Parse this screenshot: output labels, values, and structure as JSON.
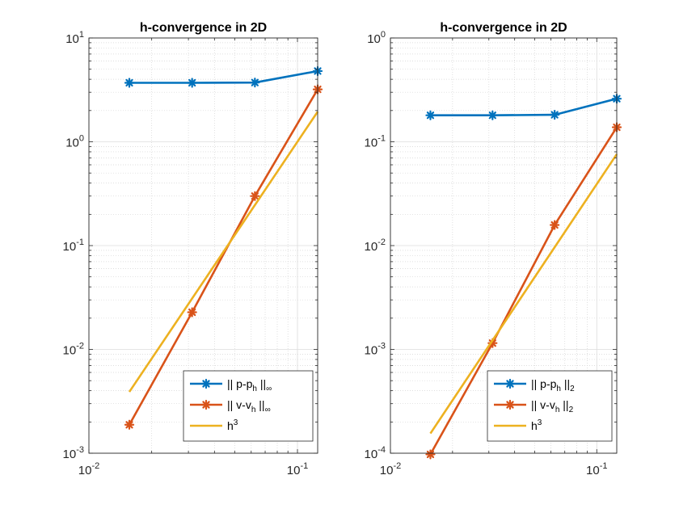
{
  "chart_data": [
    {
      "type": "line",
      "title": "h-convergence in 2D",
      "xscale": "log",
      "yscale": "log",
      "xlim": [
        0.01,
        0.125
      ],
      "ylim": [
        0.001,
        10
      ],
      "grid": true,
      "legend_position": "bottom-right",
      "x_ticks": [
        {
          "value": 0.01,
          "base": "10",
          "exp": "-2"
        },
        {
          "value": 0.1,
          "base": "10",
          "exp": "-1"
        }
      ],
      "y_ticks": [
        {
          "value": 0.001,
          "base": "10",
          "exp": "-3"
        },
        {
          "value": 0.01,
          "base": "10",
          "exp": "-2"
        },
        {
          "value": 0.1,
          "base": "10",
          "exp": "-1"
        },
        {
          "value": 1,
          "base": "10",
          "exp": "0"
        },
        {
          "value": 10,
          "base": "10",
          "exp": "1"
        }
      ],
      "series": [
        {
          "legend_main": "|| p-p",
          "legend_sub": "h",
          "legend_tail": " ||",
          "legend_tail_sub": "∞",
          "color": "#0072BD",
          "marker": "asterisk",
          "x": [
            0.015625,
            0.03125,
            0.0625,
            0.125
          ],
          "y": [
            3.7,
            3.7,
            3.72,
            4.8
          ]
        },
        {
          "legend_main": "|| v-v",
          "legend_sub": "h",
          "legend_tail": " ||",
          "legend_tail_sub": "∞",
          "color": "#D95319",
          "marker": "asterisk",
          "x": [
            0.015625,
            0.03125,
            0.0625,
            0.125
          ],
          "y": [
            0.00188,
            0.0228,
            0.3,
            3.2
          ]
        },
        {
          "legend_main": "h",
          "legend_sup": "3",
          "color": "#EDB120",
          "marker": "none",
          "x": [
            0.015625,
            0.125
          ],
          "y": [
            0.0039,
            1.95
          ]
        }
      ]
    },
    {
      "type": "line",
      "title": "h-convergence in 2D",
      "xscale": "log",
      "yscale": "log",
      "xlim": [
        0.01,
        0.125
      ],
      "ylim": [
        0.0001,
        1
      ],
      "grid": true,
      "legend_position": "bottom-right",
      "x_ticks": [
        {
          "value": 0.01,
          "base": "10",
          "exp": "-2"
        },
        {
          "value": 0.1,
          "base": "10",
          "exp": "-1"
        }
      ],
      "y_ticks": [
        {
          "value": 0.0001,
          "base": "10",
          "exp": "-4"
        },
        {
          "value": 0.001,
          "base": "10",
          "exp": "-3"
        },
        {
          "value": 0.01,
          "base": "10",
          "exp": "-2"
        },
        {
          "value": 0.1,
          "base": "10",
          "exp": "-1"
        },
        {
          "value": 1,
          "base": "10",
          "exp": "0"
        }
      ],
      "series": [
        {
          "legend_main": "|| p-p",
          "legend_sub": "h",
          "legend_tail": " ||",
          "legend_tail_sub": "2",
          "color": "#0072BD",
          "marker": "asterisk",
          "x": [
            0.015625,
            0.03125,
            0.0625,
            0.125
          ],
          "y": [
            0.18,
            0.18,
            0.182,
            0.26
          ]
        },
        {
          "legend_main": "|| v-v",
          "legend_sub": "h",
          "legend_tail": " ||",
          "legend_tail_sub": "2",
          "color": "#D95319",
          "marker": "asterisk",
          "x": [
            0.015625,
            0.03125,
            0.0625,
            0.125
          ],
          "y": [
            9.75e-05,
            0.00115,
            0.0158,
            0.138
          ]
        },
        {
          "legend_main": "h",
          "legend_sup": "3",
          "color": "#EDB120",
          "marker": "none",
          "x": [
            0.015625,
            0.125
          ],
          "y": [
            0.000155,
            0.076
          ]
        }
      ]
    }
  ]
}
